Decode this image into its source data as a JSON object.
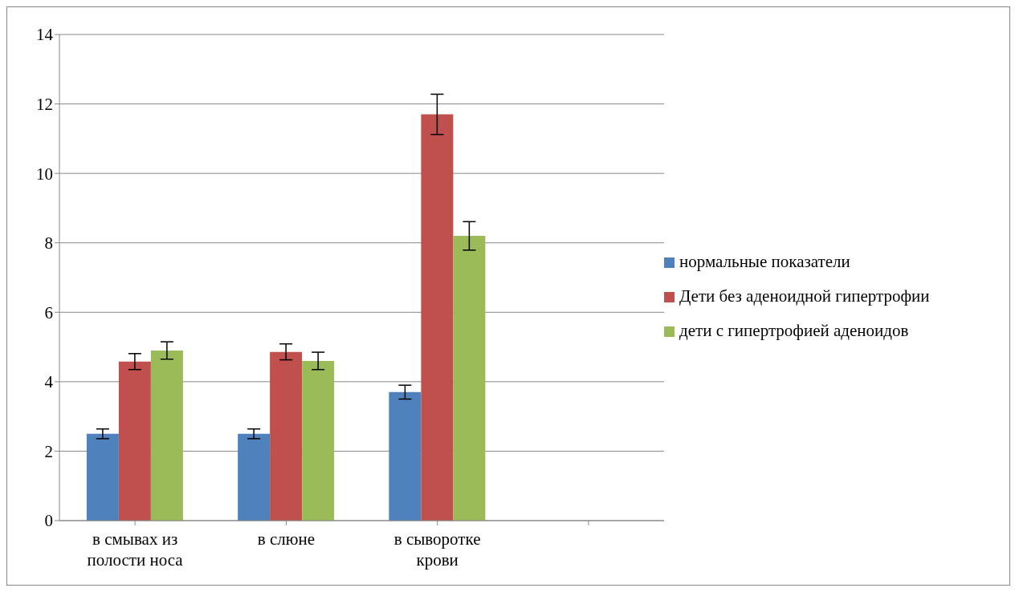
{
  "chart_data": {
    "type": "bar",
    "categories": [
      "в смывах из полости носа",
      "в слюне",
      "в сыворотке крови",
      null
    ],
    "series": [
      {
        "name": "нормальные показатели",
        "color": "#4f81bd",
        "values": [
          2.5,
          2.5,
          3.7,
          null
        ],
        "errors": [
          0.14,
          0.14,
          0.2,
          null
        ]
      },
      {
        "name": "Дети без аденоидной гипертрофии",
        "color": "#c0504d",
        "values": [
          4.58,
          4.86,
          11.7,
          null
        ],
        "errors": [
          0.23,
          0.23,
          0.58,
          null
        ]
      },
      {
        "name": "дети с гипертрофией аденоидов",
        "color": "#9bbb59",
        "values": [
          4.9,
          4.6,
          8.2,
          null
        ],
        "errors": [
          0.25,
          0.25,
          0.41,
          null
        ]
      }
    ],
    "ylim": [
      0,
      14
    ],
    "yticks": [
      0,
      2,
      4,
      6,
      8,
      10,
      12,
      14
    ],
    "grid": "y",
    "legend": "right"
  }
}
